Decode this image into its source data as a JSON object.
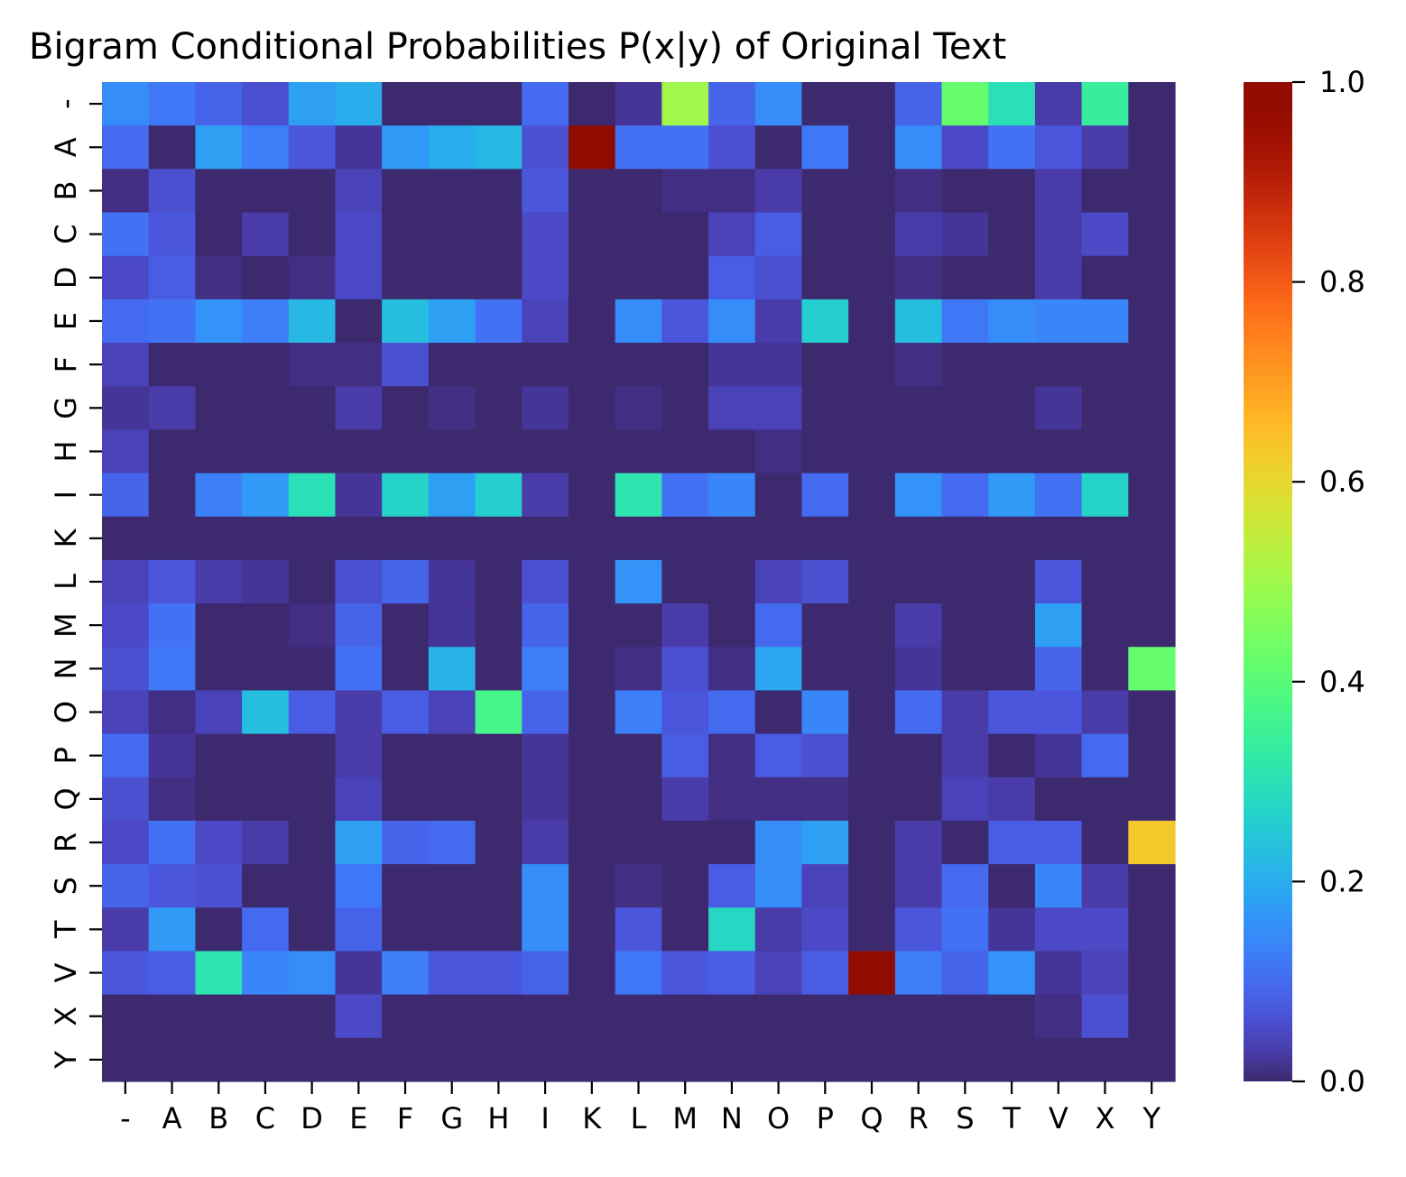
{
  "chart_data": {
    "type": "heatmap",
    "title": "Bigram Conditional Probabilities P(x|y) of Original Text",
    "xlabel": "",
    "ylabel": "",
    "x_labels": [
      "-",
      "A",
      "B",
      "C",
      "D",
      "E",
      "F",
      "G",
      "H",
      "I",
      "K",
      "L",
      "M",
      "N",
      "O",
      "P",
      "Q",
      "R",
      "S",
      "T",
      "V",
      "X",
      "Y"
    ],
    "y_labels": [
      "-",
      "A",
      "B",
      "C",
      "D",
      "E",
      "F",
      "G",
      "H",
      "I",
      "K",
      "L",
      "M",
      "N",
      "O",
      "P",
      "Q",
      "R",
      "S",
      "T",
      "V",
      "X",
      "Y"
    ],
    "colormap": "turbo",
    "vmin": 0.0,
    "vmax": 1.0,
    "colorbar_ticks": [
      0.0,
      0.2,
      0.4,
      0.6,
      0.8,
      1.0
    ],
    "colorbar_tick_labels": [
      "0.0",
      "0.2",
      "0.4",
      "0.6",
      "0.8",
      "1.0"
    ],
    "values": [
      [
        0.15,
        0.12,
        0.09,
        0.06,
        0.18,
        0.2,
        0,
        0,
        0,
        0.1,
        0,
        0.02,
        0.5,
        0.09,
        0.15,
        0,
        0,
        0.09,
        0.42,
        0.3,
        0.03,
        0.34,
        0
      ],
      [
        0.1,
        0,
        0.18,
        0.13,
        0.07,
        0.02,
        0.17,
        0.2,
        0.22,
        0.06,
        1.0,
        0.11,
        0.11,
        0.06,
        0,
        0.12,
        0,
        0.15,
        0.05,
        0.11,
        0.07,
        0.03,
        0
      ],
      [
        0.01,
        0.06,
        0,
        0,
        0,
        0.04,
        0,
        0,
        0,
        0.07,
        0,
        0,
        0.01,
        0.01,
        0.03,
        0,
        0,
        0.01,
        0,
        0,
        0.03,
        0,
        0
      ],
      [
        0.11,
        0.07,
        0,
        0.03,
        0,
        0.05,
        0,
        0,
        0,
        0.05,
        0,
        0,
        0,
        0.04,
        0.08,
        0,
        0,
        0.03,
        0.02,
        0,
        0.03,
        0.05,
        0
      ],
      [
        0.05,
        0.08,
        0.01,
        0,
        0.01,
        0.05,
        0,
        0,
        0,
        0.05,
        0,
        0,
        0,
        0.08,
        0.06,
        0,
        0,
        0.01,
        0,
        0,
        0.03,
        0,
        0
      ],
      [
        0.1,
        0.11,
        0.16,
        0.13,
        0.22,
        0,
        0.23,
        0.18,
        0.11,
        0.04,
        0,
        0.15,
        0.07,
        0.15,
        0.03,
        0.26,
        0,
        0.23,
        0.12,
        0.15,
        0.14,
        0.14,
        0
      ],
      [
        0.04,
        0,
        0,
        0,
        0.01,
        0.01,
        0.06,
        0,
        0,
        0,
        0,
        0,
        0,
        0.02,
        0.02,
        0,
        0,
        0.01,
        0,
        0,
        0,
        0,
        0
      ],
      [
        0.02,
        0.03,
        0,
        0,
        0,
        0.03,
        0,
        0.01,
        0,
        0.02,
        0,
        0.01,
        0,
        0.04,
        0.04,
        0,
        0,
        0,
        0,
        0,
        0.02,
        0,
        0
      ],
      [
        0.04,
        0,
        0,
        0,
        0,
        0,
        0,
        0,
        0,
        0,
        0,
        0,
        0,
        0,
        0.01,
        0,
        0,
        0,
        0,
        0,
        0,
        0,
        0
      ],
      [
        0.09,
        0,
        0.13,
        0.17,
        0.3,
        0.02,
        0.27,
        0.18,
        0.26,
        0.03,
        0,
        0.31,
        0.11,
        0.14,
        0,
        0.1,
        0,
        0.16,
        0.1,
        0.17,
        0.11,
        0.27,
        0
      ],
      [
        0,
        0,
        0,
        0,
        0,
        0,
        0,
        0,
        0,
        0,
        0,
        0,
        0,
        0,
        0,
        0,
        0,
        0,
        0,
        0,
        0,
        0,
        0
      ],
      [
        0.04,
        0.07,
        0.03,
        0.02,
        0,
        0.06,
        0.09,
        0.02,
        0,
        0.06,
        0,
        0.16,
        0,
        0,
        0.04,
        0.06,
        0,
        0,
        0,
        0,
        0.07,
        0,
        0
      ],
      [
        0.05,
        0.11,
        0,
        0,
        0.01,
        0.09,
        0,
        0.02,
        0,
        0.09,
        0,
        0,
        0.03,
        0,
        0.1,
        0,
        0,
        0.03,
        0,
        0,
        0.18,
        0,
        0
      ],
      [
        0.06,
        0.12,
        0,
        0,
        0,
        0.11,
        0,
        0.21,
        0,
        0.13,
        0,
        0.01,
        0.06,
        0.01,
        0.19,
        0,
        0,
        0.02,
        0,
        0,
        0.09,
        0,
        0.42
      ],
      [
        0.04,
        0.01,
        0.04,
        0.23,
        0.08,
        0.03,
        0.08,
        0.04,
        0.37,
        0.09,
        0,
        0.13,
        0.07,
        0.1,
        0,
        0.14,
        0,
        0.1,
        0.03,
        0.07,
        0.07,
        0.03,
        0
      ],
      [
        0.1,
        0.02,
        0,
        0,
        0,
        0.03,
        0,
        0,
        0,
        0.02,
        0,
        0,
        0.08,
        0.01,
        0.08,
        0.06,
        0,
        0,
        0.03,
        0,
        0.02,
        0.1,
        0
      ],
      [
        0.06,
        0.01,
        0,
        0,
        0,
        0.04,
        0,
        0,
        0,
        0.02,
        0,
        0,
        0.03,
        0.01,
        0.01,
        0.01,
        0,
        0,
        0.04,
        0.03,
        0,
        0,
        0
      ],
      [
        0.05,
        0.11,
        0.05,
        0.03,
        0,
        0.18,
        0.09,
        0.1,
        0,
        0.03,
        0,
        0,
        0,
        0,
        0.15,
        0.18,
        0,
        0.03,
        0,
        0.08,
        0.08,
        0,
        0.63
      ],
      [
        0.09,
        0.07,
        0.06,
        0,
        0,
        0.12,
        0,
        0,
        0,
        0.15,
        0,
        0.01,
        0,
        0.08,
        0.15,
        0.04,
        0,
        0.03,
        0.1,
        0,
        0.14,
        0.03,
        0
      ],
      [
        0.03,
        0.17,
        0,
        0.1,
        0,
        0.09,
        0,
        0,
        0,
        0.15,
        0,
        0.07,
        0,
        0.28,
        0.03,
        0.05,
        0,
        0.07,
        0.11,
        0.02,
        0.05,
        0.05,
        0
      ],
      [
        0.07,
        0.08,
        0.31,
        0.14,
        0.15,
        0.02,
        0.13,
        0.07,
        0.07,
        0.09,
        0,
        0.12,
        0.07,
        0.08,
        0.04,
        0.08,
        1.0,
        0.13,
        0.09,
        0.16,
        0.02,
        0.04,
        0
      ],
      [
        0,
        0,
        0,
        0,
        0,
        0.05,
        0,
        0,
        0,
        0,
        0,
        0,
        0,
        0,
        0,
        0,
        0,
        0,
        0,
        0,
        0.01,
        0.06,
        0
      ],
      [
        0,
        0,
        0,
        0,
        0,
        0,
        0,
        0,
        0,
        0,
        0,
        0,
        0,
        0,
        0,
        0,
        0,
        0,
        0,
        0,
        0,
        0,
        0
      ]
    ]
  }
}
